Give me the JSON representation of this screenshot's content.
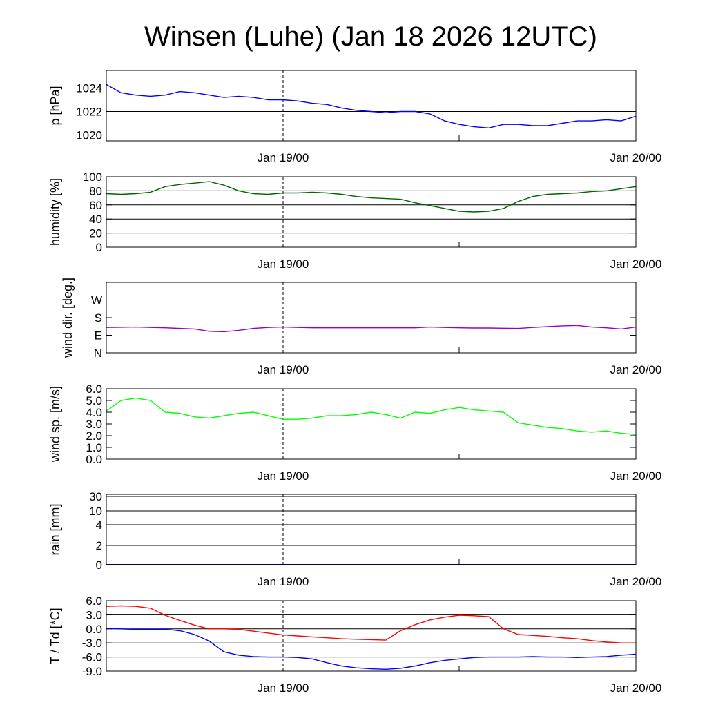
{
  "chart_data": [
    {
      "key": "p",
      "type": "line",
      "title": "Winsen (Luhe) (Jan 18 2026 12UTC)",
      "ylabel": "p [hPa]",
      "ylim": [
        1019.5,
        1025.5
      ],
      "grid": [
        1020,
        1022,
        1024
      ],
      "ticks": [
        {
          "v": 1020,
          "label": "1020"
        },
        {
          "v": 1022,
          "label": "1022"
        },
        {
          "v": 1024,
          "label": "1024"
        }
      ],
      "xlabels": [
        "Jan 19/00",
        "Jan 20/00"
      ],
      "series": [
        {
          "name": "pressure",
          "color": "#0000ff",
          "values": [
            1024.3,
            1023.6,
            1023.4,
            1023.3,
            1023.4,
            1023.7,
            1023.6,
            1023.4,
            1023.2,
            1023.3,
            1023.2,
            1023.0,
            1023.0,
            1022.9,
            1022.7,
            1022.6,
            1022.3,
            1022.1,
            1022.0,
            1021.9,
            1022.0,
            1022.0,
            1021.8,
            1021.2,
            1020.9,
            1020.7,
            1020.6,
            1020.9,
            1020.9,
            1020.8,
            1020.8,
            1021.0,
            1021.2,
            1021.2,
            1021.3,
            1021.2,
            1021.6
          ]
        }
      ]
    },
    {
      "key": "rh",
      "type": "line",
      "ylabel": "humidity [%]",
      "ylim": [
        0,
        100
      ],
      "grid": [
        20,
        40,
        60,
        80
      ],
      "ticks": [
        {
          "v": 0,
          "label": "0"
        },
        {
          "v": 20,
          "label": "20"
        },
        {
          "v": 40,
          "label": "40"
        },
        {
          "v": 60,
          "label": "60"
        },
        {
          "v": 80,
          "label": "80"
        },
        {
          "v": 100,
          "label": "100"
        }
      ],
      "xlabels": [
        "Jan 19/00",
        "Jan 20/00"
      ],
      "series": [
        {
          "name": "humidity",
          "color": "#006400",
          "values": [
            76,
            75,
            76,
            78,
            86,
            89,
            91,
            93,
            88,
            80,
            76,
            75,
            77,
            77,
            78,
            77,
            75,
            72,
            70,
            69,
            68,
            63,
            59,
            55,
            51,
            50,
            51,
            55,
            65,
            72,
            75,
            76,
            77,
            79,
            80,
            83,
            86
          ]
        }
      ]
    },
    {
      "key": "dd",
      "type": "line",
      "ylabel": "wind dir. [deg.]",
      "ylim": [
        0,
        360
      ],
      "grid": [],
      "ticks": [
        {
          "v": 0,
          "label": "N"
        },
        {
          "v": 90,
          "label": "E"
        },
        {
          "v": 180,
          "label": "S"
        },
        {
          "v": 270,
          "label": "W"
        }
      ],
      "xlabels": [
        "Jan 19/00",
        "Jan 20/00"
      ],
      "series": [
        {
          "name": "wind direction",
          "color": "#9400d3",
          "values": [
            130,
            131,
            132,
            130,
            128,
            125,
            122,
            110,
            108,
            115,
            125,
            130,
            132,
            130,
            128,
            128,
            128,
            128,
            128,
            128,
            128,
            128,
            132,
            130,
            128,
            127,
            127,
            126,
            125,
            130,
            134,
            138,
            140,
            132,
            128,
            122,
            132
          ]
        }
      ]
    },
    {
      "key": "ff",
      "type": "line",
      "ylabel": "wind sp. [m/s]",
      "ylim": [
        0,
        6
      ],
      "grid": [],
      "ticks": [
        {
          "v": 0,
          "label": "0.0"
        },
        {
          "v": 1,
          "label": "1.0"
        },
        {
          "v": 2,
          "label": "2.0"
        },
        {
          "v": 3,
          "label": "3.0"
        },
        {
          "v": 4,
          "label": "4.0"
        },
        {
          "v": 5,
          "label": "5.0"
        },
        {
          "v": 6,
          "label": "6.0"
        }
      ],
      "xlabels": [
        "Jan 19/00",
        "Jan 20/00"
      ],
      "series": [
        {
          "name": "wind speed",
          "color": "#00ff00",
          "values": [
            4.1,
            5.0,
            5.2,
            5.0,
            4.0,
            3.9,
            3.6,
            3.5,
            3.7,
            3.9,
            4.0,
            3.7,
            3.4,
            3.4,
            3.5,
            3.7,
            3.7,
            3.8,
            4.0,
            3.8,
            3.5,
            4.0,
            3.9,
            4.2,
            4.4,
            4.2,
            4.1,
            4.0,
            3.1,
            2.9,
            2.7,
            2.6,
            2.4,
            2.3,
            2.4,
            2.2,
            2.1
          ]
        }
      ]
    },
    {
      "key": "rr",
      "type": "line",
      "ylabel": "rain [mm]",
      "ylim": [
        0,
        30
      ],
      "grid": [
        2,
        4,
        10,
        30
      ],
      "ticks": [
        {
          "v": 0,
          "label": "0"
        },
        {
          "v": 2,
          "label": "2"
        },
        {
          "v": 4,
          "label": "4"
        },
        {
          "v": 10,
          "label": "10"
        },
        {
          "v": 30,
          "label": "30"
        }
      ],
      "xlabels": [
        "Jan 19/00",
        "Jan 20/00"
      ],
      "series": [
        {
          "name": "rain",
          "color": "#00008b",
          "values": [
            0,
            0,
            0,
            0,
            0,
            0,
            0,
            0,
            0,
            0,
            0,
            0,
            0,
            0,
            0,
            0,
            0,
            0,
            0,
            0,
            0,
            0,
            0,
            0,
            0,
            0,
            0,
            0,
            0,
            0,
            0,
            0,
            0,
            0,
            0,
            0,
            0
          ]
        }
      ]
    },
    {
      "key": "t",
      "type": "line",
      "ylabel": "T / Td [*C]",
      "ylim": [
        -9,
        6
      ],
      "grid": [
        3,
        0,
        -3,
        -6
      ],
      "ticks": [
        {
          "v": -9,
          "label": "-9.0"
        },
        {
          "v": -6,
          "label": "-6.0"
        },
        {
          "v": -3,
          "label": "-3.0"
        },
        {
          "v": 0,
          "label": "0.0"
        },
        {
          "v": 3,
          "label": "3.0"
        },
        {
          "v": 6,
          "label": "6.0"
        }
      ],
      "xlabels": [
        "Jan 19/00",
        "Jan 20/00"
      ],
      "series": [
        {
          "name": "temperature",
          "color": "#ff0000",
          "values": [
            4.8,
            4.9,
            4.8,
            4.4,
            2.9,
            1.8,
            0.8,
            0.0,
            0.0,
            -0.1,
            -0.5,
            -0.9,
            -1.3,
            -1.5,
            -1.7,
            -1.9,
            -2.1,
            -2.2,
            -2.3,
            -2.4,
            -0.4,
            0.9,
            1.9,
            2.5,
            2.9,
            2.8,
            2.6,
            0.0,
            -1.2,
            -1.4,
            -1.6,
            -1.9,
            -2.1,
            -2.5,
            -2.8,
            -3.0,
            -3.0
          ]
        },
        {
          "name": "dew point",
          "color": "#0000ff",
          "values": [
            0.1,
            0.0,
            -0.1,
            -0.1,
            -0.1,
            -0.4,
            -1.2,
            -2.6,
            -4.9,
            -5.6,
            -5.9,
            -6.0,
            -6.0,
            -6.1,
            -6.4,
            -7.2,
            -7.9,
            -8.3,
            -8.5,
            -8.6,
            -8.4,
            -7.9,
            -7.2,
            -6.7,
            -6.4,
            -6.1,
            -6.0,
            -6.0,
            -6.0,
            -5.9,
            -6.0,
            -6.0,
            -6.1,
            -6.0,
            -5.9,
            -5.6,
            -5.4
          ]
        }
      ]
    }
  ]
}
